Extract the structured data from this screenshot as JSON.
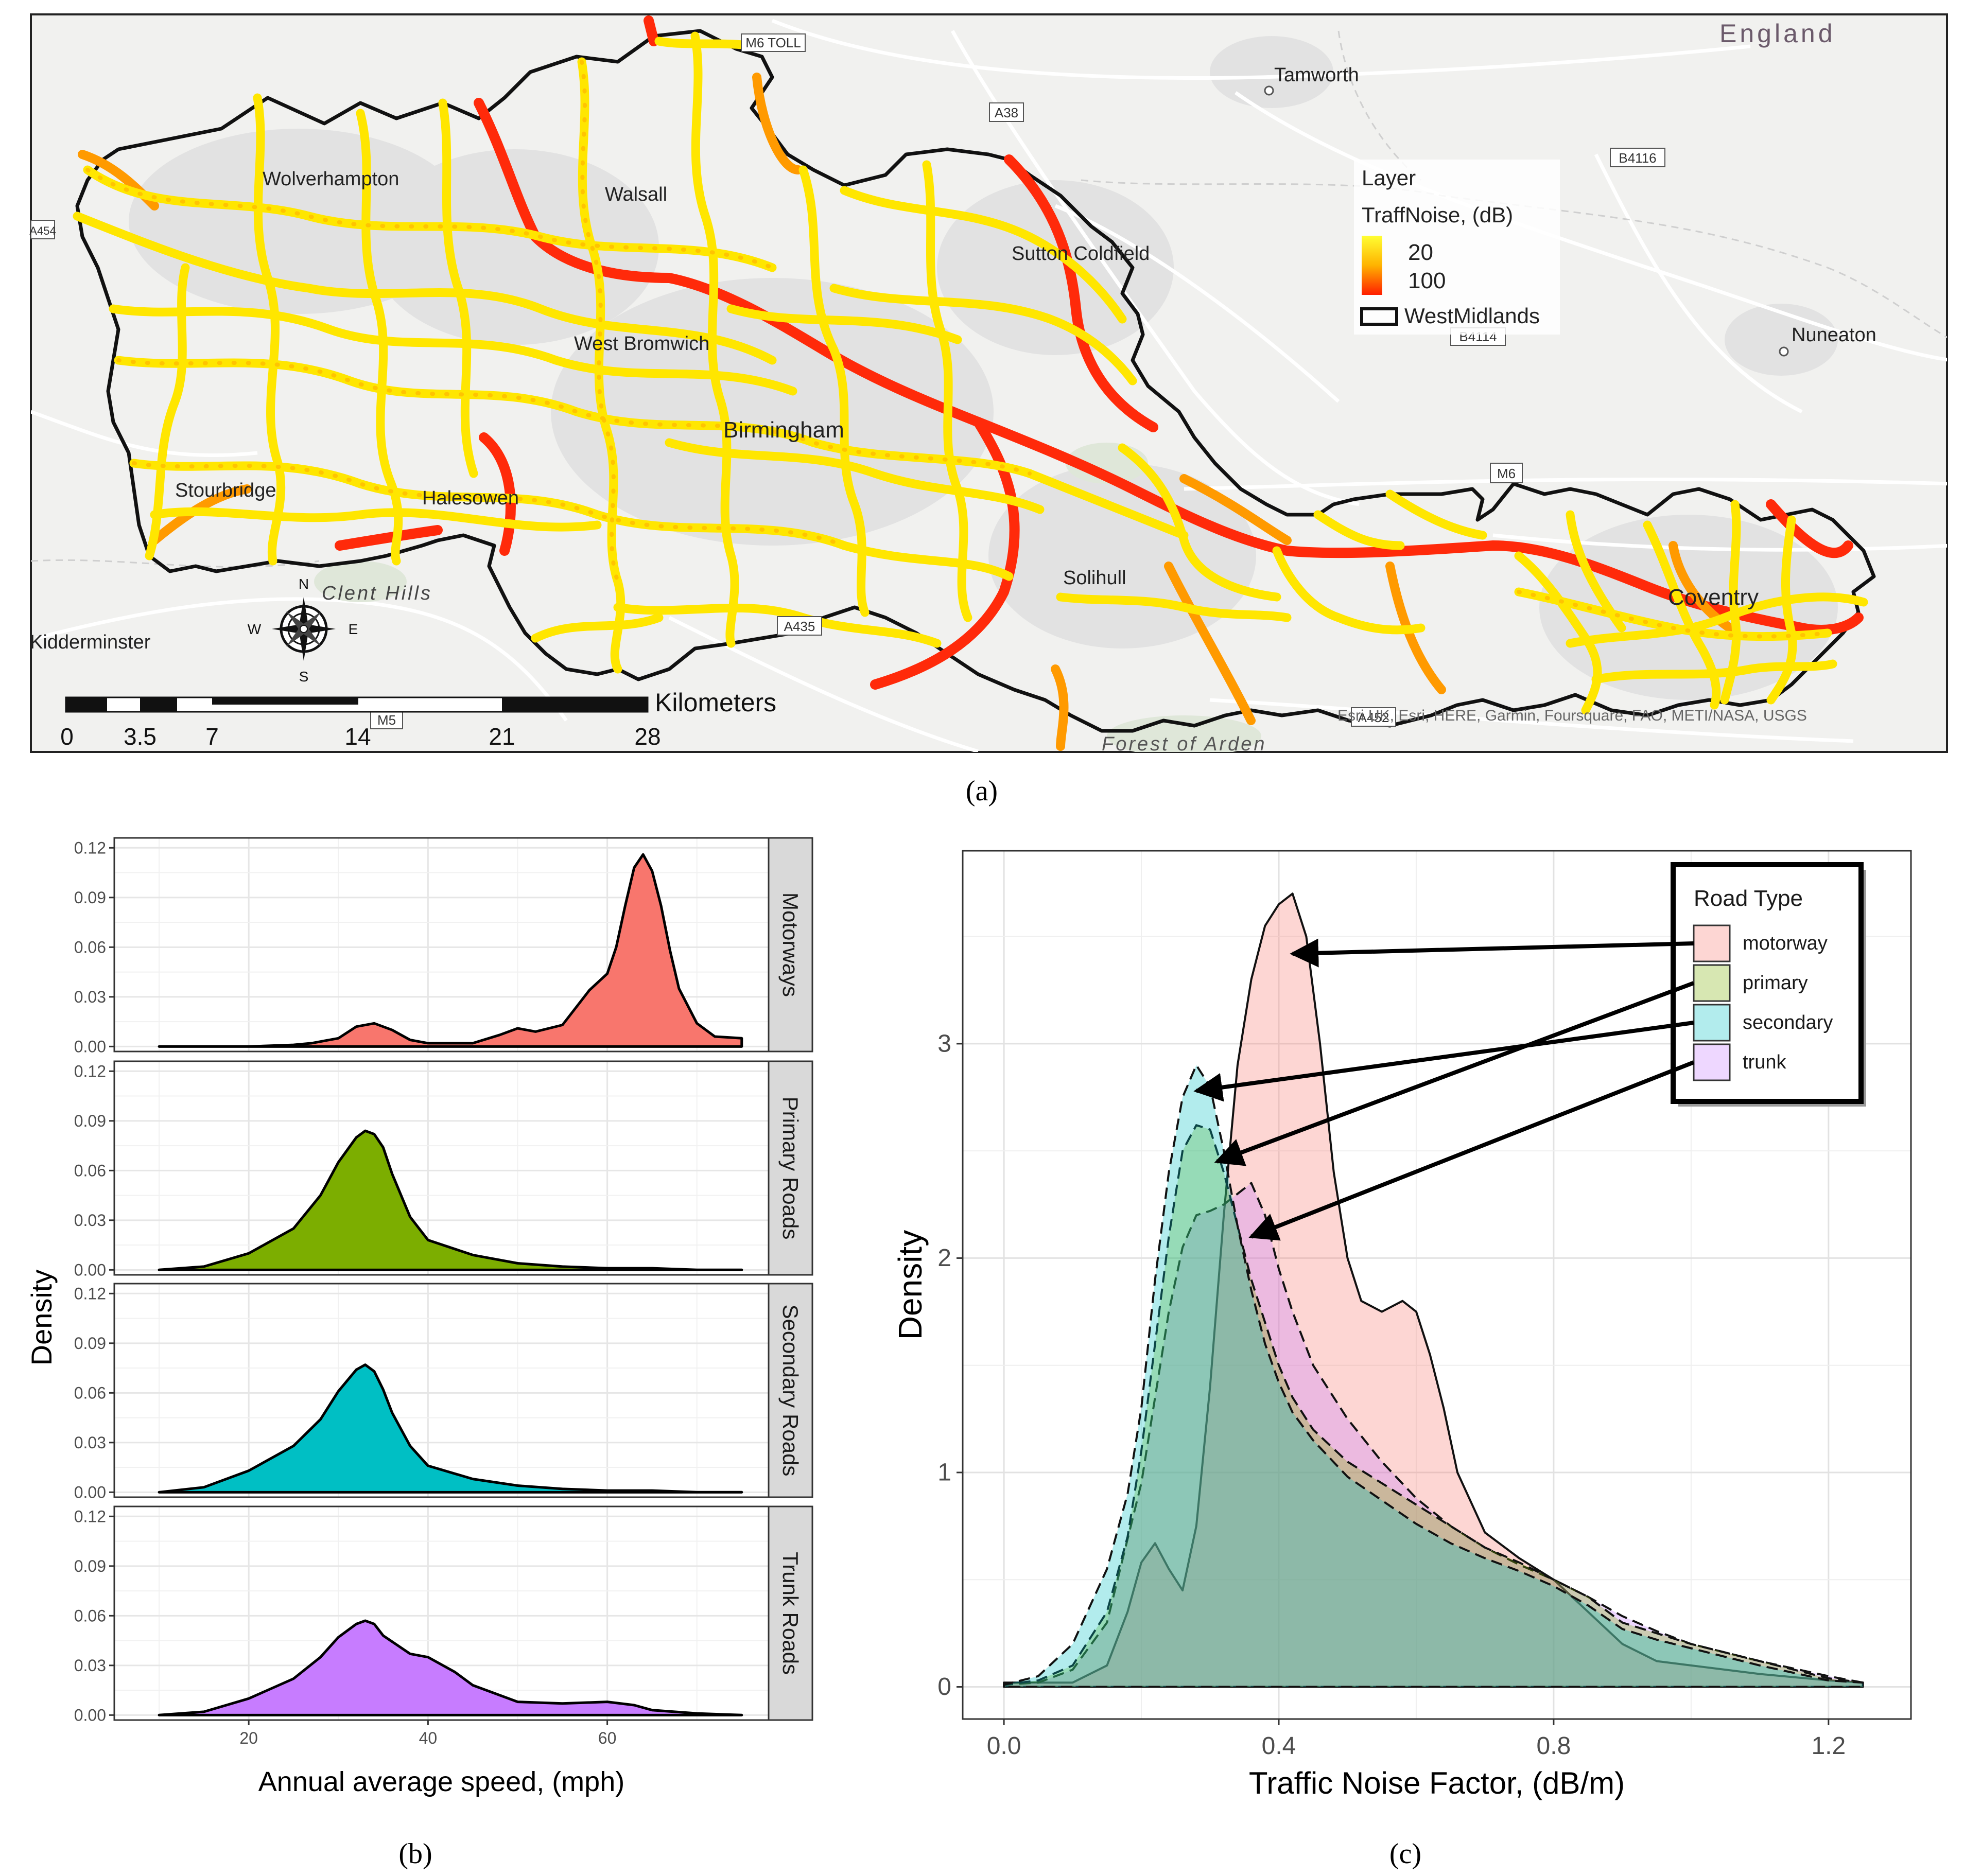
{
  "captions": {
    "a": "(a)",
    "b": "(b)",
    "c": "(c)"
  },
  "map": {
    "place_labels": [
      "England",
      "Tamworth",
      "Sutton Coldfield",
      "Nuneaton",
      "Solihull",
      "West Bromwich",
      "Stourbridge",
      "Halesowen",
      "Wolverhampton",
      "Walsall",
      "Birmingham",
      "Coventry",
      "Kidderminster",
      "Forest of Arden"
    ],
    "road_shields": [
      "M6 TOLL",
      "A38",
      "B4116",
      "B4114",
      "M6",
      "A435",
      "A452",
      "M5",
      "A454"
    ],
    "hills_label": "Clent Hills",
    "legend": {
      "title": "Layer",
      "field": "TraffNoise, (dB)",
      "low": "20",
      "high": "100",
      "boundary": "WestMidlands"
    },
    "compass": {
      "n": "N",
      "s": "S",
      "e": "E",
      "w": "W"
    },
    "scalebar": {
      "unit": "Kilometers",
      "ticks": [
        "0",
        "3.5",
        "7",
        "14",
        "21",
        "28"
      ]
    },
    "attribution": "Esri UK, Esri, HERE, Garmin, Foursquare, FAO, METI/NASA, USGS",
    "colors": {
      "low": "#ffff00",
      "mid": "#ffb300",
      "high": "#ff1e00",
      "boundary": "#111111"
    }
  },
  "chart_data": [
    {
      "type": "area",
      "ylabel": "Density",
      "xlabel": "Annual average speed, (mph)",
      "x_ticks": [
        "20",
        "40",
        "60"
      ],
      "y_ticks": [
        "0.00",
        "0.03",
        "0.06",
        "0.09",
        "0.12"
      ],
      "xlim": [
        5,
        78
      ],
      "ylim": [
        -0.003,
        0.126
      ],
      "panels": [
        {
          "name": "Motorways",
          "color": "#f8766d",
          "x": [
            10,
            20,
            25,
            27,
            30,
            32,
            34,
            36,
            38,
            40,
            45,
            48,
            50,
            52,
            55,
            57,
            58,
            60,
            61,
            62,
            63,
            64,
            65,
            66,
            67,
            68,
            70,
            72,
            75
          ],
          "y": [
            0,
            0,
            0.001,
            0.002,
            0.005,
            0.012,
            0.014,
            0.01,
            0.004,
            0.002,
            0.002,
            0.007,
            0.011,
            0.009,
            0.013,
            0.027,
            0.034,
            0.044,
            0.06,
            0.085,
            0.108,
            0.116,
            0.106,
            0.085,
            0.058,
            0.035,
            0.014,
            0.006,
            0.005
          ]
        },
        {
          "name": "Primary Roads",
          "color": "#7cae00",
          "x": [
            10,
            15,
            20,
            25,
            28,
            30,
            32,
            33,
            34,
            35,
            36,
            38,
            40,
            45,
            50,
            55,
            60,
            65,
            70,
            75
          ],
          "y": [
            0,
            0.002,
            0.01,
            0.025,
            0.045,
            0.065,
            0.08,
            0.084,
            0.082,
            0.074,
            0.058,
            0.032,
            0.018,
            0.009,
            0.004,
            0.002,
            0.001,
            0.001,
            0,
            0
          ]
        },
        {
          "name": "Secondary Roads",
          "color": "#00bfc4",
          "x": [
            10,
            15,
            20,
            25,
            28,
            30,
            32,
            33,
            34,
            35,
            36,
            38,
            40,
            45,
            50,
            55,
            60,
            65,
            70,
            75
          ],
          "y": [
            0,
            0.003,
            0.013,
            0.028,
            0.044,
            0.061,
            0.074,
            0.077,
            0.073,
            0.062,
            0.048,
            0.028,
            0.016,
            0.008,
            0.004,
            0.002,
            0.001,
            0.001,
            0,
            0
          ]
        },
        {
          "name": "Trunk Roads",
          "color": "#c77cff",
          "x": [
            10,
            15,
            20,
            25,
            28,
            30,
            32,
            33,
            34,
            35,
            38,
            40,
            43,
            45,
            50,
            55,
            60,
            63,
            65,
            70,
            75
          ],
          "y": [
            0,
            0.002,
            0.01,
            0.022,
            0.035,
            0.047,
            0.055,
            0.057,
            0.055,
            0.048,
            0.037,
            0.035,
            0.026,
            0.018,
            0.008,
            0.007,
            0.008,
            0.006,
            0.003,
            0.001,
            0
          ]
        }
      ]
    },
    {
      "type": "area",
      "ylabel": "Density",
      "xlabel": "Traffic Noise Factor, (dB/m)",
      "x_ticks": [
        "0.0",
        "0.4",
        "0.8",
        "1.2"
      ],
      "y_ticks": [
        "0",
        "1",
        "2",
        "3"
      ],
      "xlim": [
        -0.06,
        1.32
      ],
      "ylim": [
        -0.15,
        3.9
      ],
      "legend_title": "Road Type",
      "series": [
        {
          "name": "motorway",
          "color": "#f8766d",
          "dash": false,
          "x": [
            0,
            0.1,
            0.15,
            0.18,
            0.2,
            0.22,
            0.24,
            0.26,
            0.28,
            0.3,
            0.32,
            0.34,
            0.36,
            0.38,
            0.4,
            0.42,
            0.44,
            0.46,
            0.48,
            0.5,
            0.52,
            0.55,
            0.58,
            0.6,
            0.62,
            0.64,
            0.66,
            0.7,
            0.75,
            0.8,
            0.85,
            0.9,
            0.95,
            1.0,
            1.1,
            1.2,
            1.25
          ],
          "y": [
            0.02,
            0.02,
            0.1,
            0.35,
            0.58,
            0.67,
            0.55,
            0.45,
            0.75,
            1.4,
            2.2,
            2.9,
            3.3,
            3.55,
            3.65,
            3.7,
            3.5,
            3.0,
            2.4,
            2.0,
            1.8,
            1.75,
            1.8,
            1.75,
            1.55,
            1.3,
            1.0,
            0.72,
            0.6,
            0.5,
            0.35,
            0.2,
            0.12,
            0.1,
            0.06,
            0.03,
            0.02
          ]
        },
        {
          "name": "primary",
          "color": "#7cae00",
          "dash": true,
          "x": [
            0,
            0.05,
            0.1,
            0.15,
            0.18,
            0.2,
            0.22,
            0.24,
            0.26,
            0.28,
            0.3,
            0.32,
            0.34,
            0.36,
            0.38,
            0.4,
            0.42,
            0.45,
            0.5,
            0.55,
            0.6,
            0.65,
            0.7,
            0.75,
            0.8,
            0.85,
            0.9,
            0.95,
            1.0,
            1.1,
            1.2,
            1.25
          ],
          "y": [
            0.01,
            0.03,
            0.1,
            0.35,
            0.7,
            1.1,
            1.6,
            2.1,
            2.5,
            2.62,
            2.6,
            2.4,
            2.15,
            1.9,
            1.7,
            1.5,
            1.35,
            1.2,
            1.05,
            0.95,
            0.85,
            0.75,
            0.65,
            0.58,
            0.5,
            0.42,
            0.3,
            0.25,
            0.2,
            0.12,
            0.04,
            0.02
          ]
        },
        {
          "name": "secondary",
          "color": "#00bfc4",
          "dash": true,
          "x": [
            0,
            0.05,
            0.1,
            0.15,
            0.18,
            0.2,
            0.22,
            0.24,
            0.26,
            0.28,
            0.3,
            0.32,
            0.34,
            0.36,
            0.38,
            0.4,
            0.42,
            0.45,
            0.5,
            0.55,
            0.6,
            0.65,
            0.7,
            0.75,
            0.8,
            0.85,
            0.9,
            0.95,
            1.0,
            1.1,
            1.2,
            1.25
          ],
          "y": [
            0.01,
            0.05,
            0.2,
            0.55,
            0.9,
            1.3,
            1.9,
            2.4,
            2.75,
            2.9,
            2.8,
            2.5,
            2.15,
            1.85,
            1.6,
            1.42,
            1.28,
            1.15,
            0.98,
            0.87,
            0.76,
            0.67,
            0.6,
            0.54,
            0.47,
            0.38,
            0.27,
            0.22,
            0.18,
            0.1,
            0.03,
            0.02
          ]
        },
        {
          "name": "trunk",
          "color": "#c77cff",
          "dash": true,
          "x": [
            0,
            0.05,
            0.1,
            0.15,
            0.2,
            0.22,
            0.24,
            0.26,
            0.28,
            0.3,
            0.32,
            0.34,
            0.36,
            0.38,
            0.4,
            0.42,
            0.45,
            0.5,
            0.55,
            0.6,
            0.65,
            0.7,
            0.75,
            0.8,
            0.85,
            0.9,
            0.95,
            1.0,
            1.1,
            1.2,
            1.25
          ],
          "y": [
            0.01,
            0.02,
            0.08,
            0.3,
            0.95,
            1.35,
            1.75,
            2.05,
            2.2,
            2.22,
            2.25,
            2.3,
            2.35,
            2.2,
            1.95,
            1.75,
            1.5,
            1.25,
            1.05,
            0.88,
            0.75,
            0.65,
            0.57,
            0.5,
            0.42,
            0.33,
            0.26,
            0.2,
            0.12,
            0.05,
            0.02
          ]
        }
      ]
    }
  ]
}
